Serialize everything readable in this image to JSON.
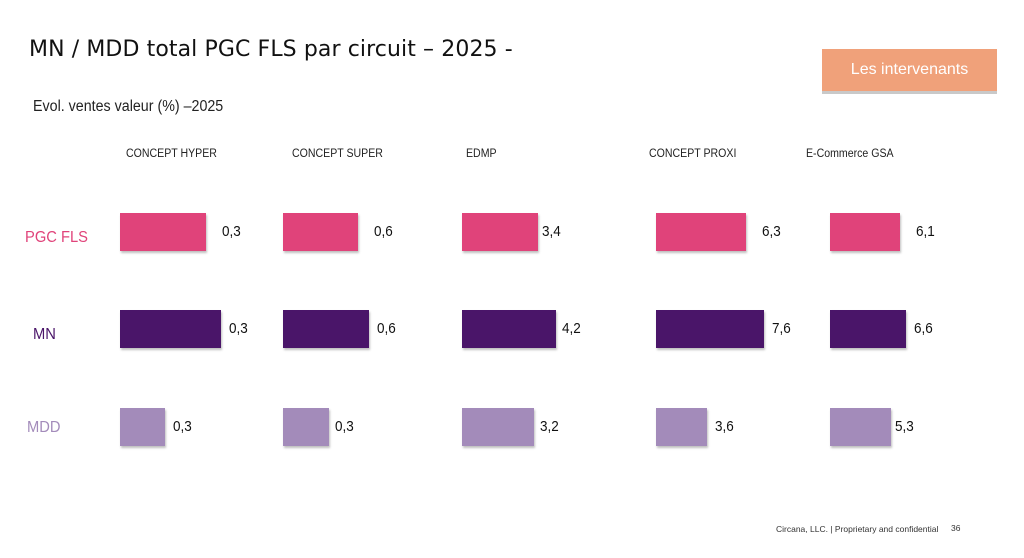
{
  "page": {
    "title": "MN / MDD total PGC FLS par circuit – 2025 -",
    "subtitle": "Evol. ventes valeur (%) –2025",
    "button_label": "Les intervenants",
    "footer": "Circana, LLC. |  Proprietary and confidential",
    "page_number": "36"
  },
  "colors": {
    "PGC FLS": "#e0437a",
    "MN": "#4a1569",
    "MDD": "#a38bba",
    "button": "#f0a17a"
  },
  "chart_data": {
    "type": "bar",
    "orientation": "horizontal",
    "title": "MN / MDD total PGC FLS par circuit – 2025 -",
    "subtitle": "Evol. ventes valeur (%) –2025",
    "xlabel": "",
    "ylabel": "",
    "categories": [
      "CONCEPT HYPER",
      "CONCEPT SUPER",
      "EDMP",
      "CONCEPT PROXI",
      "E-Commerce GSA"
    ],
    "series": [
      {
        "name": "PGC FLS",
        "values": [
          0.3,
          0.6,
          3.4,
          6.3,
          6.1
        ],
        "labels": [
          "0,3",
          "0,6",
          "3,4",
          "6,3",
          "6,1"
        ]
      },
      {
        "name": "MN",
        "values": [
          0.3,
          0.6,
          4.2,
          7.6,
          6.6
        ],
        "labels": [
          "0,3",
          "0,6",
          "4,2",
          "7,6",
          "6,6"
        ]
      },
      {
        "name": "MDD",
        "values": [
          0.3,
          0.3,
          3.2,
          3.6,
          5.3
        ],
        "labels": [
          "0,3",
          "0,3",
          "3,2",
          "3,6",
          "5,3"
        ]
      }
    ],
    "grid": false,
    "legend": "row labels on left"
  }
}
